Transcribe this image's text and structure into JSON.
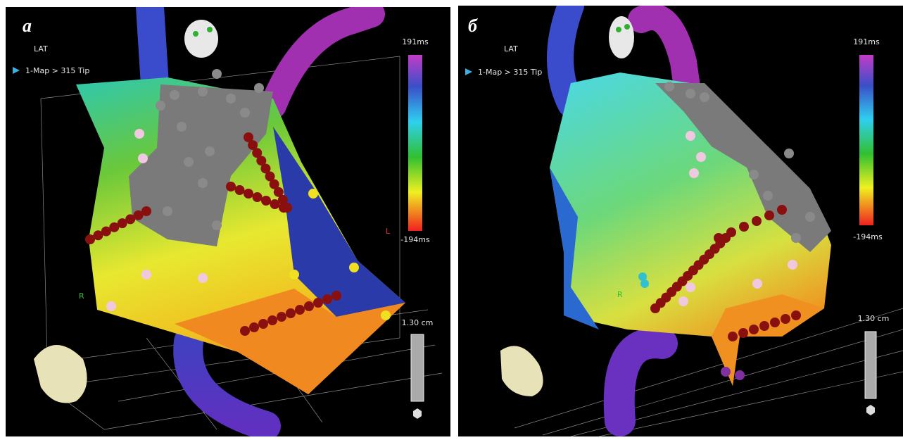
{
  "panels": [
    {
      "label": "а",
      "map_type": "LAT",
      "map_name": "1-Map > 315 Tip",
      "scale_max": "191ms",
      "scale_min": "-194ms",
      "ruler": "1.30 cm",
      "axis_labels": [
        "R",
        "L"
      ]
    },
    {
      "label": "б",
      "map_type": "LAT",
      "map_name": "1-Map > 315 Tip",
      "scale_max": "191ms",
      "scale_min": "-194ms",
      "ruler": "1.30 cm",
      "axis_labels": [
        "R"
      ]
    }
  ]
}
